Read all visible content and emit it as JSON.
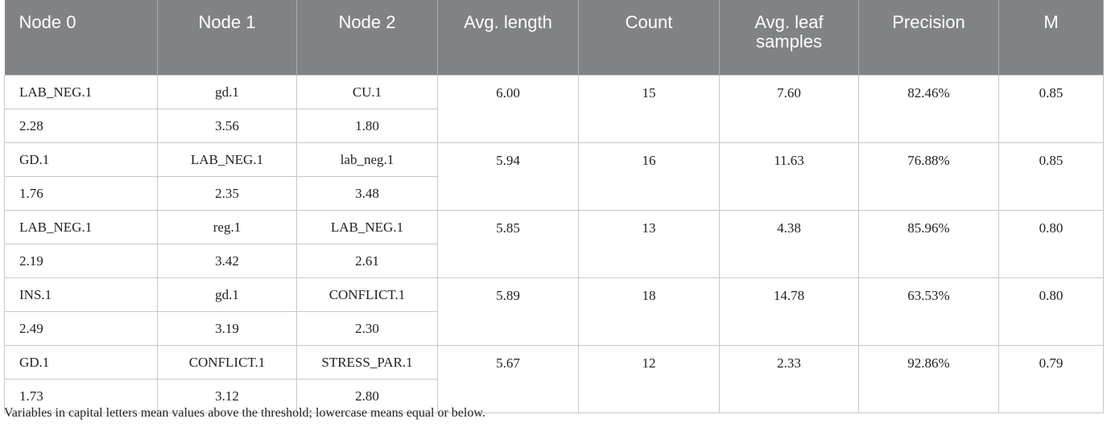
{
  "table": {
    "headers": [
      "Node 0",
      "Node 1",
      "Node 2",
      "Avg. length",
      "Count",
      "Avg. leaf samples",
      "Precision",
      "M"
    ],
    "rows": [
      {
        "nodes": [
          [
            "LAB_NEG.1",
            "gd.1",
            "CU.1"
          ],
          [
            "2.28",
            "3.56",
            "1.80"
          ]
        ],
        "avg_length": "6.00",
        "count": "15",
        "avg_leaf_samples": "7.60",
        "precision": "82.46%",
        "m": "0.85"
      },
      {
        "nodes": [
          [
            "GD.1",
            "LAB_NEG.1",
            "lab_neg.1"
          ],
          [
            "1.76",
            "2.35",
            "3.48"
          ]
        ],
        "avg_length": "5.94",
        "count": "16",
        "avg_leaf_samples": "11.63",
        "precision": "76.88%",
        "m": "0.85"
      },
      {
        "nodes": [
          [
            "LAB_NEG.1",
            "reg.1",
            "LAB_NEG.1"
          ],
          [
            "2.19",
            "3.42",
            "2.61"
          ]
        ],
        "avg_length": "5.85",
        "count": "13",
        "avg_leaf_samples": "4.38",
        "precision": "85.96%",
        "m": "0.80"
      },
      {
        "nodes": [
          [
            "INS.1",
            "gd.1",
            "CONFLICT.1"
          ],
          [
            "2.49",
            "3.19",
            "2.30"
          ]
        ],
        "avg_length": "5.89",
        "count": "18",
        "avg_leaf_samples": "14.78",
        "precision": "63.53%",
        "m": "0.80"
      },
      {
        "nodes": [
          [
            "GD.1",
            "CONFLICT.1",
            "STRESS_PAR.1"
          ],
          [
            "1.73",
            "3.12",
            "2.80"
          ]
        ],
        "avg_length": "5.67",
        "count": "12",
        "avg_leaf_samples": "2.33",
        "precision": "92.86%",
        "m": "0.79"
      }
    ],
    "footnote": "Variables in capital letters mean values above the threshold; lowercase means equal or below."
  }
}
